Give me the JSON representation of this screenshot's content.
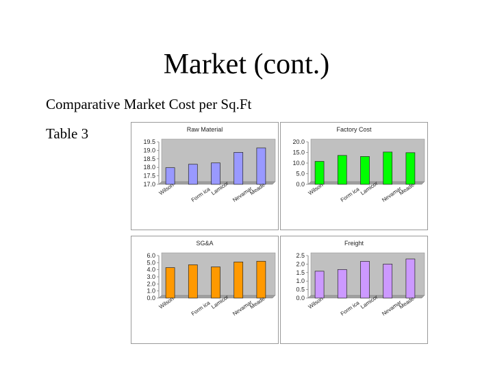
{
  "slide": {
    "title": "Market (cont.)",
    "subtitle": "Comparative Market Cost per Sq.Ft",
    "table_label": "Table 3"
  },
  "chart_data": [
    {
      "type": "bar",
      "title": "Raw  Material",
      "categories": [
        "Wilson",
        "Form ica",
        "Lamicor",
        "Nevamar",
        "Meade"
      ],
      "values": [
        17.98,
        18.18,
        18.26,
        18.88,
        19.14
      ],
      "ylim": [
        17.0,
        19.5
      ],
      "yticks": [
        "17.0",
        "17.5",
        "18.0",
        "18.5",
        "19.0",
        "19.5"
      ],
      "color": "#9999ff",
      "grid": false
    },
    {
      "type": "bar",
      "title": "Factory Cost",
      "categories": [
        "Wilson",
        "Form ica",
        "Lamicor",
        "Nevamar",
        "Meade"
      ],
      "values": [
        10.8,
        13.6,
        13.1,
        15.2,
        14.9
      ],
      "ylim": [
        0,
        20
      ],
      "yticks": [
        "0.0",
        "5.0",
        "10.0",
        "15.0",
        "20.0"
      ],
      "color": "#00ff00",
      "grid": false
    },
    {
      "type": "bar",
      "title": "SG&A",
      "categories": [
        "Wilson",
        "Form ica",
        "Lamicor",
        "Nevamar",
        "Meade"
      ],
      "values": [
        4.3,
        4.7,
        4.4,
        5.1,
        5.2
      ],
      "ylim": [
        0,
        6
      ],
      "yticks": [
        "0.0",
        "1.0",
        "2.0",
        "3.0",
        "4.0",
        "5.0",
        "6.0"
      ],
      "color": "#ff9900",
      "grid": false
    },
    {
      "type": "bar",
      "title": "Freight",
      "categories": [
        "Wilson",
        "Form ica",
        "Lamicor",
        "Nevamar",
        "Meade"
      ],
      "values": [
        1.58,
        1.68,
        2.16,
        2.0,
        2.3
      ],
      "ylim": [
        0,
        2.5
      ],
      "yticks": [
        "0.0",
        "0.5",
        "1.0",
        "1.5",
        "2.0",
        "2.5"
      ],
      "color": "#cc99ff",
      "grid": false
    }
  ]
}
